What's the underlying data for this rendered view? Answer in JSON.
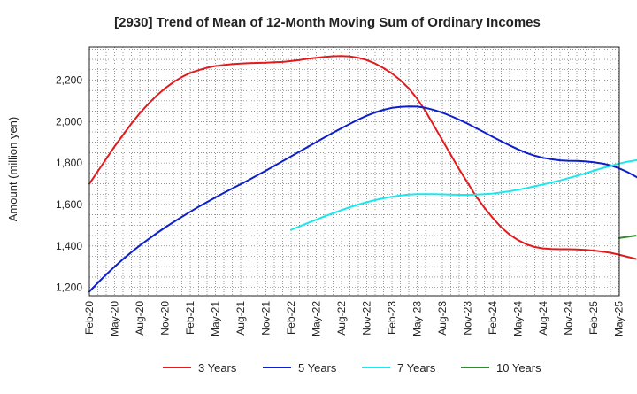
{
  "chart_data": {
    "type": "line",
    "title": "[2930]  Trend of Mean of 12-Month Moving Sum of Ordinary Incomes",
    "xlabel": "",
    "ylabel": "Amount (million yen)",
    "ylim": [
      1160,
      2360
    ],
    "yticks": [
      1200,
      1400,
      1600,
      1800,
      2000,
      2200
    ],
    "ytick_labels": [
      "1,200",
      "1,400",
      "1,600",
      "1,800",
      "2,000",
      "2,200"
    ],
    "xticks": [
      "Feb-20",
      "May-20",
      "Aug-20",
      "Nov-20",
      "Feb-21",
      "May-21",
      "Aug-21",
      "Nov-21",
      "Feb-22",
      "May-22",
      "Aug-22",
      "Nov-22",
      "Feb-23",
      "May-23",
      "Aug-23",
      "Nov-23",
      "Feb-24",
      "May-24",
      "Aug-24",
      "Nov-24",
      "Feb-25",
      "May-25"
    ],
    "grid": true,
    "legend_position": "bottom",
    "series": [
      {
        "name": "3 Years",
        "color": "#e31a1c",
        "start_month_index": 0,
        "values": [
          1700,
          1760,
          1820,
          1880,
          1935,
          1990,
          2040,
          2085,
          2125,
          2160,
          2190,
          2215,
          2235,
          2248,
          2260,
          2268,
          2273,
          2277,
          2280,
          2282,
          2283,
          2284,
          2286,
          2288,
          2292,
          2297,
          2303,
          2308,
          2312,
          2315,
          2316,
          2314,
          2308,
          2297,
          2280,
          2258,
          2232,
          2200,
          2160,
          2110,
          2050,
          1980,
          1910,
          1840,
          1770,
          1705,
          1640,
          1585,
          1535,
          1490,
          1455,
          1428,
          1408,
          1395,
          1388,
          1385,
          1384,
          1384,
          1383,
          1381,
          1378,
          1373,
          1367,
          1358,
          1348,
          1338
        ]
      },
      {
        "name": "5 Years",
        "color": "#0b1fcc",
        "start_month_index": 0,
        "values": [
          1180,
          1222,
          1262,
          1300,
          1336,
          1370,
          1402,
          1432,
          1461,
          1489,
          1515,
          1540,
          1565,
          1589,
          1612,
          1634,
          1656,
          1677,
          1698,
          1719,
          1741,
          1763,
          1786,
          1809,
          1832,
          1855,
          1878,
          1901,
          1924,
          1946,
          1968,
          1989,
          2010,
          2028,
          2044,
          2057,
          2066,
          2071,
          2073,
          2072,
          2066,
          2056,
          2043,
          2027,
          2009,
          1990,
          1969,
          1948,
          1926,
          1905,
          1885,
          1866,
          1849,
          1835,
          1825,
          1818,
          1813,
          1811,
          1810,
          1808,
          1804,
          1798,
          1789,
          1775,
          1757,
          1735,
          1712
        ]
      },
      {
        "name": "7 Years",
        "color": "#18e8f0",
        "start_month_index": 24,
        "values": [
          1478,
          1494,
          1511,
          1527,
          1543,
          1558,
          1573,
          1587,
          1600,
          1611,
          1621,
          1630,
          1638,
          1644,
          1648,
          1650,
          1650,
          1650,
          1649,
          1648,
          1647,
          1647,
          1648,
          1650,
          1653,
          1658,
          1664,
          1671,
          1679,
          1688,
          1697,
          1706,
          1716,
          1727,
          1738,
          1750,
          1763,
          1775,
          1786,
          1797,
          1806,
          1813,
          1818,
          1820
        ]
      },
      {
        "name": "10 Years",
        "color": "#2e8b2e",
        "start_month_index": 63,
        "values": [
          1438,
          1444,
          1450
        ]
      }
    ]
  }
}
